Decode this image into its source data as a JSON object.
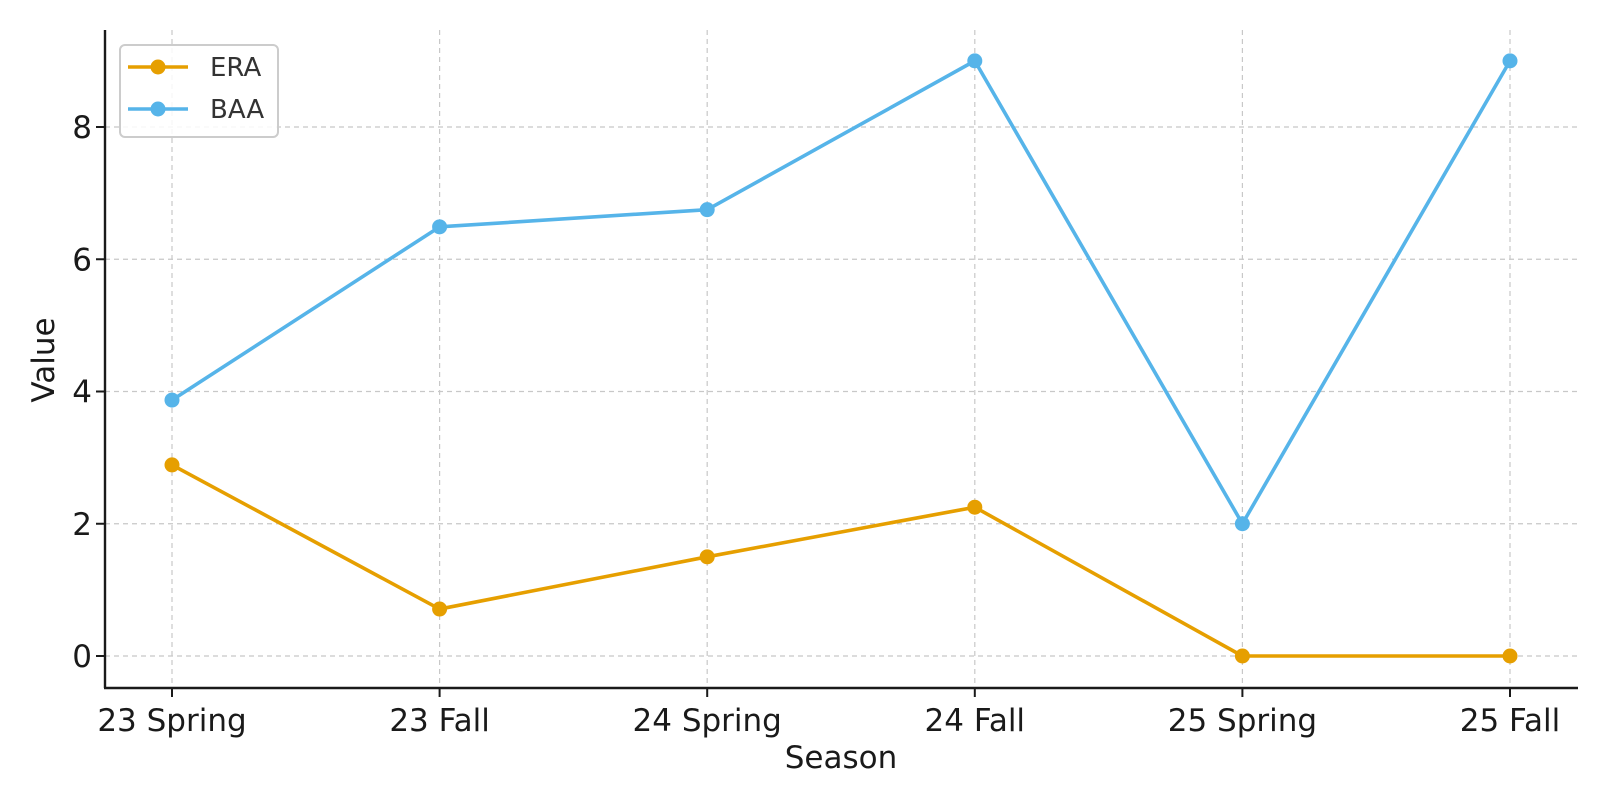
{
  "chart_data": {
    "type": "line",
    "title": "",
    "xlabel": "Season",
    "ylabel": "Value",
    "categories": [
      "23 Spring",
      "23 Fall",
      "24 Spring",
      "24 Fall",
      "25 Spring",
      "25 Fall"
    ],
    "ylim": [
      -0.45,
      9.45
    ],
    "yticks": [
      0,
      2,
      4,
      6,
      8
    ],
    "grid": true,
    "legend_position": "top-left",
    "series": [
      {
        "name": "ERA",
        "color": "#E69F00",
        "values": [
          2.89,
          0.71,
          1.5,
          2.25,
          0.0,
          0.0
        ]
      },
      {
        "name": "BAA",
        "color": "#56B4E9",
        "values": [
          3.87,
          6.49,
          6.75,
          9.0,
          2.0,
          9.0
        ]
      }
    ]
  }
}
